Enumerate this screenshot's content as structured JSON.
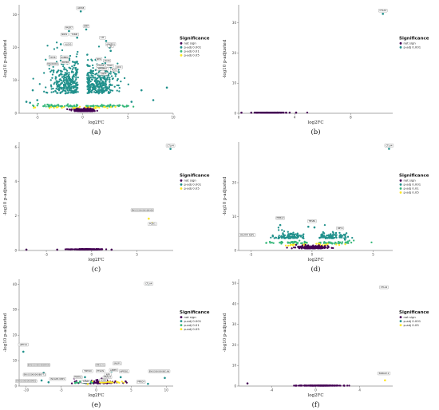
{
  "colors": {
    "not_sign": "#440154",
    "p001": "#21918c",
    "p01": "#35b779",
    "p05": "#fde725",
    "axis": "#555555"
  },
  "chart_data": [
    {
      "id": "a",
      "type": "scatter",
      "caption": "(a)",
      "xlabel": "log2FC",
      "ylabel": "-log10 p-adjusted",
      "xlim": [
        -7,
        10
      ],
      "ylim": [
        0,
        33
      ],
      "xticks": [
        -5,
        0,
        5,
        10
      ],
      "yticks": [
        0,
        10,
        20,
        30
      ],
      "legend": {
        "title": "Significance",
        "entries": [
          "not sign",
          "p-adj 0.001",
          "p-adj 0.01",
          "p-adj 0.05"
        ],
        "groups": [
          "not_sign",
          "p001",
          "p01",
          "p05"
        ]
      },
      "points": [
        {
          "x": -0.2,
          "y": 31,
          "g": "p001"
        },
        {
          "x": -1.5,
          "y": 25,
          "g": "p001"
        },
        {
          "x": 0.4,
          "y": 25.5,
          "g": "p001"
        },
        {
          "x": -0.6,
          "y": 23,
          "g": "p001"
        },
        {
          "x": 2.6,
          "y": 22,
          "g": "p001"
        },
        {
          "x": 3.0,
          "y": 20,
          "g": "p001"
        },
        {
          "x": 3.1,
          "y": 19,
          "g": "p001"
        },
        {
          "x": -2.4,
          "y": 21,
          "g": "p001"
        },
        {
          "x": -2.0,
          "y": 17,
          "g": "p001"
        },
        {
          "x": -3.4,
          "y": 15,
          "g": "p001"
        },
        {
          "x": -2.3,
          "y": 15,
          "g": "p001"
        },
        {
          "x": -3.2,
          "y": 13,
          "g": "p001"
        },
        {
          "x": 2.2,
          "y": 15,
          "g": "p001"
        },
        {
          "x": 3.1,
          "y": 14,
          "g": "p001"
        },
        {
          "x": 2.6,
          "y": 13,
          "g": "p001"
        },
        {
          "x": 4.0,
          "y": 12.5,
          "g": "p001"
        },
        {
          "x": 3.6,
          "y": 12,
          "g": "p001"
        },
        {
          "x": 2.4,
          "y": 10.5,
          "g": "p001"
        },
        {
          "x": -5.5,
          "y": 7,
          "g": "p001"
        },
        {
          "x": -5.0,
          "y": 4,
          "g": "p001"
        },
        {
          "x": -6.2,
          "y": 3.5,
          "g": "p001"
        },
        {
          "x": -5.8,
          "y": 3.2,
          "g": "p001"
        },
        {
          "x": 6.5,
          "y": 7,
          "g": "p001"
        },
        {
          "x": 7.8,
          "y": 4,
          "g": "p001"
        },
        {
          "x": 9.3,
          "y": 7.8,
          "g": "p001"
        },
        {
          "x": 5.4,
          "y": 3.5,
          "g": "p001"
        }
      ],
      "clouds": [
        {
          "cx": -1.6,
          "cy": 6,
          "sx": 1.1,
          "sy": 5,
          "n": 340,
          "g": "p001",
          "minAbsX": 0.5,
          "minY": 2.2
        },
        {
          "cx": 1.8,
          "cy": 6,
          "sx": 1.0,
          "sy": 4.5,
          "n": 300,
          "g": "p001",
          "minAbsX": 0.5,
          "minY": 2.2
        },
        {
          "cx": -2.6,
          "cy": 2.0,
          "sx": 1.4,
          "sy": 0.3,
          "n": 60,
          "g": "p01",
          "minAbsX": 0.4,
          "minY": 1.5
        },
        {
          "cx": 2.6,
          "cy": 2.0,
          "sx": 1.4,
          "sy": 0.3,
          "n": 60,
          "g": "p01",
          "minAbsX": 0.4,
          "minY": 1.5
        },
        {
          "cx": 0,
          "cy": 1.5,
          "sx": 2.0,
          "sy": 0.25,
          "n": 40,
          "g": "p05",
          "minAbsX": 0.3,
          "minY": 1.2
        },
        {
          "cx": 0,
          "cy": 0.6,
          "sx": 0.6,
          "sy": 0.35,
          "n": 260,
          "g": "not_sign",
          "minAbsX": 0,
          "minY": 0.05
        }
      ],
      "labels": [
        {
          "text": "LRP1B",
          "x": -0.2,
          "y": 31
        },
        {
          "text": "PAQR7",
          "x": -1.5,
          "y": 25
        },
        {
          "text": "BMP",
          "x": 0.4,
          "y": 25.5
        },
        {
          "text": "NRP1",
          "x": -2.0,
          "y": 23
        },
        {
          "text": "TXNIP",
          "x": -0.9,
          "y": 23
        },
        {
          "text": "LTF",
          "x": 2.2,
          "y": 22
        },
        {
          "text": "ANKRD1",
          "x": 3.1,
          "y": 20
        },
        {
          "text": "TBP",
          "x": 3.1,
          "y": 19.5
        },
        {
          "text": "ALOX5",
          "x": -1.6,
          "y": 20
        },
        {
          "text": "CD36",
          "x": -3.3,
          "y": 16
        },
        {
          "text": "GABRG",
          "x": -2.0,
          "y": 16
        },
        {
          "text": "NEK",
          "x": 1.8,
          "y": 15.5
        },
        {
          "text": "PDE4B",
          "x": -1.9,
          "y": 14.5
        },
        {
          "text": "MACROD2",
          "x": -3.3,
          "y": 14
        },
        {
          "text": "CD34",
          "x": 2.7,
          "y": 15
        },
        {
          "text": "TSG6",
          "x": 3.0,
          "y": 13.5
        },
        {
          "text": "PTGS2",
          "x": 2.0,
          "y": 13.5
        },
        {
          "text": "JCD4",
          "x": 4.0,
          "y": 13
        },
        {
          "text": "SERPINA",
          "x": 2.2,
          "y": 12.5
        },
        {
          "text": "PCK1",
          "x": 3.5,
          "y": 12.2
        },
        {
          "text": "TIMP4",
          "x": 2.3,
          "y": 11
        }
      ]
    },
    {
      "id": "b",
      "type": "scatter",
      "caption": "(b)",
      "xlabel": "log2FC",
      "ylabel": "-log10 p-adjusted",
      "xlim": [
        0,
        11
      ],
      "ylim": [
        0,
        36
      ],
      "xticks": [
        0,
        4,
        8
      ],
      "yticks": [
        0,
        10,
        20,
        30
      ],
      "legend": {
        "title": "Significance",
        "entries": [
          "not sign",
          "p-adj 0.001"
        ],
        "groups": [
          "not_sign",
          "p001"
        ]
      },
      "points": [
        {
          "x": 10.3,
          "y": 33,
          "g": "p001"
        },
        {
          "x": 0.2,
          "y": 0.2,
          "g": "not_sign"
        },
        {
          "x": 0.9,
          "y": 0.2,
          "g": "not_sign"
        },
        {
          "x": 1.3,
          "y": 0.2,
          "g": "not_sign"
        },
        {
          "x": 1.6,
          "y": 0.2,
          "g": "not_sign"
        },
        {
          "x": 3.4,
          "y": 0.2,
          "g": "not_sign"
        },
        {
          "x": 4.1,
          "y": 0.2,
          "g": "not_sign"
        }
      ],
      "clouds": [
        {
          "cx": 2.3,
          "cy": 0.2,
          "sx": 0.5,
          "sy": 0.02,
          "n": 180,
          "g": "not_sign",
          "minAbsX": 0,
          "minY": 0.05
        }
      ],
      "labels": [
        {
          "text": "CTLA4",
          "x": 10.3,
          "y": 33
        }
      ]
    },
    {
      "id": "c",
      "type": "scatter",
      "caption": "(c)",
      "xlabel": "log2FC",
      "ylabel": "-log10 p-adjusted",
      "xlim": [
        -8,
        9
      ],
      "ylim": [
        0,
        6.3
      ],
      "xticks": [
        -5,
        0,
        5
      ],
      "yticks": [
        0,
        2,
        4,
        6
      ],
      "legend": {
        "title": "Significance",
        "entries": [
          "not sign",
          "p-adj 0.001",
          "p-adj 0.05"
        ],
        "groups": [
          "not_sign",
          "p001",
          "p05"
        ]
      },
      "points": [
        {
          "x": 8.7,
          "y": 5.9,
          "g": "p001"
        },
        {
          "x": 6.3,
          "y": 1.85,
          "g": "p05"
        },
        {
          "x": 6.7,
          "y": 1.6,
          "g": "p05"
        },
        {
          "x": -7.2,
          "y": 0.05,
          "g": "not_sign"
        },
        {
          "x": -3.8,
          "y": 0.05,
          "g": "not_sign"
        },
        {
          "x": 2.2,
          "y": 0.05,
          "g": "not_sign"
        }
      ],
      "clouds": [
        {
          "cx": -0.5,
          "cy": 0.06,
          "sx": 0.9,
          "sy": 0.01,
          "n": 220,
          "g": "not_sign",
          "minAbsX": 0,
          "minY": 0.02
        }
      ],
      "labels": [
        {
          "text": "CTLA4",
          "x": 8.7,
          "y": 5.9
        },
        {
          "text": "ENSGG00000089900",
          "x": 5.6,
          "y": 2.15
        },
        {
          "text": "POSI1",
          "x": 6.7,
          "y": 1.35
        }
      ]
    },
    {
      "id": "d",
      "type": "scatter",
      "caption": "(d)",
      "xlabel": "log2FC",
      "ylabel": "-log10 p-adjusted",
      "xlim": [
        -6,
        6.6
      ],
      "ylim": [
        0,
        32
      ],
      "xticks": [
        -5,
        0,
        5
      ],
      "yticks": [
        0,
        10,
        20
      ],
      "legend": {
        "title": "Significance",
        "entries": [
          "not sign",
          "p-adj 0.001",
          "p-adj 0.01",
          "p-adj 0.05"
        ],
        "groups": [
          "not_sign",
          "p001",
          "p01",
          "p05"
        ]
      },
      "points": [
        {
          "x": 6.3,
          "y": 30,
          "g": "p001"
        },
        {
          "x": -5.3,
          "y": 4.5,
          "g": "p001"
        },
        {
          "x": -2.6,
          "y": 7.5,
          "g": "p001"
        },
        {
          "x": -0.3,
          "y": 7,
          "g": "p001"
        },
        {
          "x": 0.2,
          "y": 6.8,
          "g": "p001"
        },
        {
          "x": 2.3,
          "y": 4.5,
          "g": "p001"
        },
        {
          "x": 2.7,
          "y": 3.2,
          "g": "p001"
        },
        {
          "x": -3.2,
          "y": 4.2,
          "g": "p001"
        }
      ],
      "clouds": [
        {
          "cx": -1.8,
          "cy": 3.5,
          "sx": 0.7,
          "sy": 0.9,
          "n": 90,
          "g": "p001",
          "minAbsX": 0.6,
          "minY": 2.2
        },
        {
          "cx": 1.6,
          "cy": 3.5,
          "sx": 0.7,
          "sy": 0.9,
          "n": 90,
          "g": "p001",
          "minAbsX": 0.6,
          "minY": 2.2
        },
        {
          "cx": -1.8,
          "cy": 2.0,
          "sx": 0.9,
          "sy": 0.35,
          "n": 40,
          "g": "p01",
          "minAbsX": 0.4,
          "minY": 1.5
        },
        {
          "cx": 1.8,
          "cy": 2.0,
          "sx": 0.9,
          "sy": 0.35,
          "n": 40,
          "g": "p01",
          "minAbsX": 0.4,
          "minY": 1.5
        },
        {
          "cx": 0,
          "cy": 1.4,
          "sx": 1.3,
          "sy": 0.25,
          "n": 30,
          "g": "p05",
          "minAbsX": 0.3,
          "minY": 1.0
        },
        {
          "cx": 0,
          "cy": 0.6,
          "sx": 0.6,
          "sy": 0.35,
          "n": 220,
          "g": "not_sign",
          "minAbsX": 0,
          "minY": 0.05
        }
      ],
      "labels": [
        {
          "text": "CTLA4",
          "x": 6.3,
          "y": 30
        },
        {
          "text": "INCAM4 KBP1",
          "x": -5.3,
          "y": 3.6
        },
        {
          "text": "PNMA2",
          "x": -2.6,
          "y": 8.6
        },
        {
          "text": "TMSB1",
          "x": 0.0,
          "y": 7.7
        },
        {
          "text": "NPY4",
          "x": 2.3,
          "y": 5.6
        }
      ]
    },
    {
      "id": "e",
      "type": "scatter",
      "caption": "(e)",
      "xlabel": "log2FC",
      "ylabel": "-log10 p-adjusted",
      "xlim": [
        -11,
        11
      ],
      "ylim": [
        0,
        42
      ],
      "xticks": [
        -10,
        -5,
        0,
        5,
        10
      ],
      "yticks": [
        0,
        10,
        20,
        30,
        40
      ],
      "legend": {
        "title": "Significance",
        "entries": [
          "not sign",
          "p-adj 0.001",
          "p-adj 0.01",
          "p-adj 0.05"
        ],
        "groups": [
          "not_sign",
          "p001",
          "p01",
          "p05"
        ]
      },
      "points": [
        {
          "x": 7.5,
          "y": 40,
          "g": "p001"
        },
        {
          "x": -10.4,
          "y": 13.5,
          "g": "p001"
        },
        {
          "x": -7.5,
          "y": 5.2,
          "g": "p001"
        },
        {
          "x": -7.8,
          "y": 2.2,
          "g": "p001"
        },
        {
          "x": -6.8,
          "y": 1.5,
          "g": "p001"
        },
        {
          "x": -1.6,
          "y": 3.5,
          "g": "p001"
        },
        {
          "x": 0.5,
          "y": 5.8,
          "g": "p001"
        },
        {
          "x": 2.2,
          "y": 5.8,
          "g": "p001"
        },
        {
          "x": 3.5,
          "y": 3.5,
          "g": "p001"
        },
        {
          "x": 9.8,
          "y": 3.2,
          "g": "p001"
        },
        {
          "x": 7.4,
          "y": 0.9,
          "g": "p001"
        },
        {
          "x": 1.3,
          "y": 3.8,
          "g": "p001"
        },
        {
          "x": -3.0,
          "y": 1.2,
          "g": "p01"
        },
        {
          "x": -1.2,
          "y": 0.8,
          "g": "p05"
        }
      ],
      "clouds": [
        {
          "cx": 0.2,
          "cy": 1.0,
          "sx": 1.5,
          "sy": 0.6,
          "n": 120,
          "g": "not_sign",
          "minAbsX": 0,
          "minY": 0.05
        },
        {
          "cx": -1.5,
          "cy": 1.3,
          "sx": 1.0,
          "sy": 0.3,
          "n": 25,
          "g": "p01",
          "minAbsX": 0.5,
          "minY": 0.9
        },
        {
          "cx": 1.5,
          "cy": 1.3,
          "sx": 1.0,
          "sy": 0.3,
          "n": 25,
          "g": "p05",
          "minAbsX": 0.5,
          "minY": 0.9
        }
      ],
      "labels": [
        {
          "text": "CTLA4",
          "x": 7.5,
          "y": 39
        },
        {
          "text": "LEFTY2",
          "x": -10.4,
          "y": 15
        },
        {
          "text": "ENSGG00000089900",
          "x": -8.2,
          "y": 7.0
        },
        {
          "text": "ENSGG00000088771",
          "x": -8.8,
          "y": 3.2
        },
        {
          "text": "INCAM4 KBP1",
          "x": -5.5,
          "y": 1.5
        },
        {
          "text": "ENSG00000089900",
          "x": -10.0,
          "y": 0.7
        },
        {
          "text": "TRIM10",
          "x": -1.2,
          "y": 4.6
        },
        {
          "text": "PNMA2",
          "x": -2.6,
          "y": 2.2
        },
        {
          "text": "TXNIP",
          "x": -1.5,
          "y": 0.5
        },
        {
          "text": "HMGCS1",
          "x": 0.6,
          "y": 7.0
        },
        {
          "text": "SNOP1",
          "x": 3.0,
          "y": 7.6
        },
        {
          "text": "PTGDS",
          "x": 0.6,
          "y": 4.6
        },
        {
          "text": "NPY",
          "x": 1.7,
          "y": 3.2
        },
        {
          "text": "SOSB",
          "x": 1.0,
          "y": 1.0
        },
        {
          "text": "AMPE3",
          "x": 2.5,
          "y": 5.0
        },
        {
          "text": "NPFEB1",
          "x": 4.0,
          "y": 4.5
        },
        {
          "text": "ENSG00000080196",
          "x": 9.0,
          "y": 4.5
        },
        {
          "text": "PRRG4",
          "x": 6.4,
          "y": 0.4
        },
        {
          "text": "PRRG4",
          "x": 1.6,
          "y": 2.2
        }
      ]
    },
    {
      "id": "f",
      "type": "scatter",
      "caption": "(f)",
      "xlabel": "log2FC",
      "ylabel": "-log10 p-adjusted",
      "xlim": [
        -7,
        7
      ],
      "ylim": [
        0,
        52
      ],
      "xticks": [
        -4,
        0,
        4
      ],
      "yticks": [
        0,
        10,
        20,
        30,
        40,
        50
      ],
      "legend": {
        "title": "Significance",
        "entries": [
          "not sign",
          "p-adj 0.001",
          "p-adj 0.05"
        ],
        "groups": [
          "not_sign",
          "p001",
          "p05"
        ]
      },
      "points": [
        {
          "x": 6.3,
          "y": 48,
          "g": "p001"
        },
        {
          "x": 6.3,
          "y": 2.8,
          "g": "p05"
        },
        {
          "x": -6.2,
          "y": 1.3,
          "g": "not_sign"
        },
        {
          "x": -1.8,
          "y": 0.2,
          "g": "not_sign"
        },
        {
          "x": 2.6,
          "y": 0.2,
          "g": "not_sign"
        }
      ],
      "clouds": [
        {
          "cx": 0.3,
          "cy": 0.2,
          "sx": 1.0,
          "sy": 0.02,
          "n": 200,
          "g": "not_sign",
          "minAbsX": 0,
          "minY": 0.05
        }
      ],
      "labels": [
        {
          "text": "CTLA4",
          "x": 6.2,
          "y": 46.5
        },
        {
          "text": "PARG22.1",
          "x": 6.2,
          "y": 4.6
        }
      ]
    }
  ]
}
